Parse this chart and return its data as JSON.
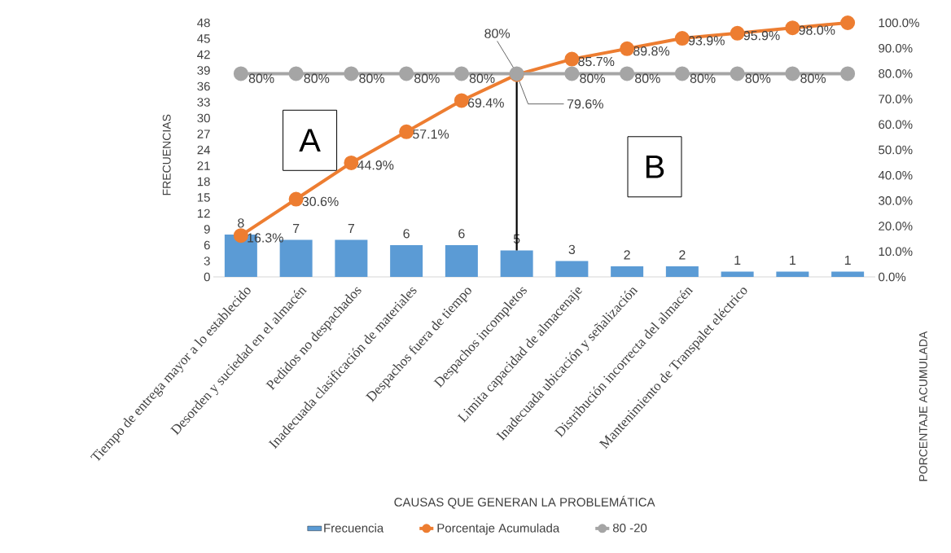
{
  "chart_data": {
    "type": "bar",
    "categories": [
      "Tiempo de entrega mayor a lo establecido",
      "Desorden y suciedad en el almacén",
      "Pedidos no despachados",
      "Inadecuada clasificación de materiales",
      "Despachos fuera de tiempo",
      "Despachos incompletos",
      "Limita capacidad de almacenaje",
      "Inadecuada ubicación y señalización",
      "Distribución incorrecta del almacén",
      "Mantenimiento de  Transpalet eléctrico",
      null,
      null
    ],
    "series": [
      {
        "name": "Frecuencia",
        "color": "#5b9bd5",
        "values": [
          8,
          7,
          7,
          6,
          6,
          5,
          3,
          2,
          2,
          1,
          1,
          1
        ],
        "value_labels": [
          "8",
          "7",
          "7",
          "6",
          "6",
          "5",
          "3",
          "2",
          "2",
          "1",
          "1",
          "1"
        ]
      },
      {
        "name": "Porcentaje Acumulada",
        "type": "line",
        "axis": "y2",
        "color": "#ed7d31",
        "values": [
          16.3,
          30.6,
          44.9,
          57.1,
          69.4,
          79.6,
          85.7,
          89.8,
          93.9,
          95.9,
          98.0,
          100
        ],
        "value_labels": [
          "16.3%",
          "30.6%",
          "44.9%",
          "57.1%",
          "69.4%",
          "79.6%",
          "85.7%",
          "89.8%",
          "93.9%",
          "95.9%",
          "98.0%",
          null
        ]
      },
      {
        "name": "80 -20",
        "type": "line",
        "axis": "y2",
        "color": "#a5a5a5",
        "values": [
          80,
          80,
          80,
          80,
          80,
          80,
          80,
          80,
          80,
          80,
          80,
          80
        ],
        "value_labels": [
          "80%",
          "80%",
          "80%",
          "80%",
          "80%",
          "80%",
          "80%",
          "80%",
          "80%",
          "80%",
          "80%",
          null
        ]
      }
    ],
    "xlabel": "CAUSAS QUE GENERAN LA PROBLEMÁTICA",
    "ylabel": "FRECUENCIAS",
    "y2label": "PORCENTAJE ACUMULADA",
    "ylim": [
      0,
      48
    ],
    "yticks": [
      0,
      3,
      6,
      9,
      12,
      15,
      18,
      21,
      24,
      27,
      30,
      33,
      36,
      39,
      42,
      45,
      48
    ],
    "y2lim": [
      0,
      100
    ],
    "y2ticks": [
      {
        "value": 0,
        "label": "0.0%"
      },
      {
        "value": 10,
        "label": "10.0%"
      },
      {
        "value": 20,
        "label": "20.0%"
      },
      {
        "value": 30,
        "label": "30.0%"
      },
      {
        "value": 40,
        "label": "40.0%"
      },
      {
        "value": 50,
        "label": "50.0%"
      },
      {
        "value": 60,
        "label": "60.0%"
      },
      {
        "value": 70,
        "label": "70.0%"
      },
      {
        "value": 80,
        "label": "80.0%"
      },
      {
        "value": 90,
        "label": "90.0%"
      },
      {
        "value": 100,
        "label": "100.0%"
      }
    ],
    "ref_lines": [
      {
        "axis": "x",
        "value": "Despachos incompletos",
        "color": "#000000"
      }
    ],
    "annotations": [
      "A",
      "B"
    ],
    "marker": "circle",
    "line_style": "solid",
    "grid": false,
    "legend": "bottom"
  }
}
